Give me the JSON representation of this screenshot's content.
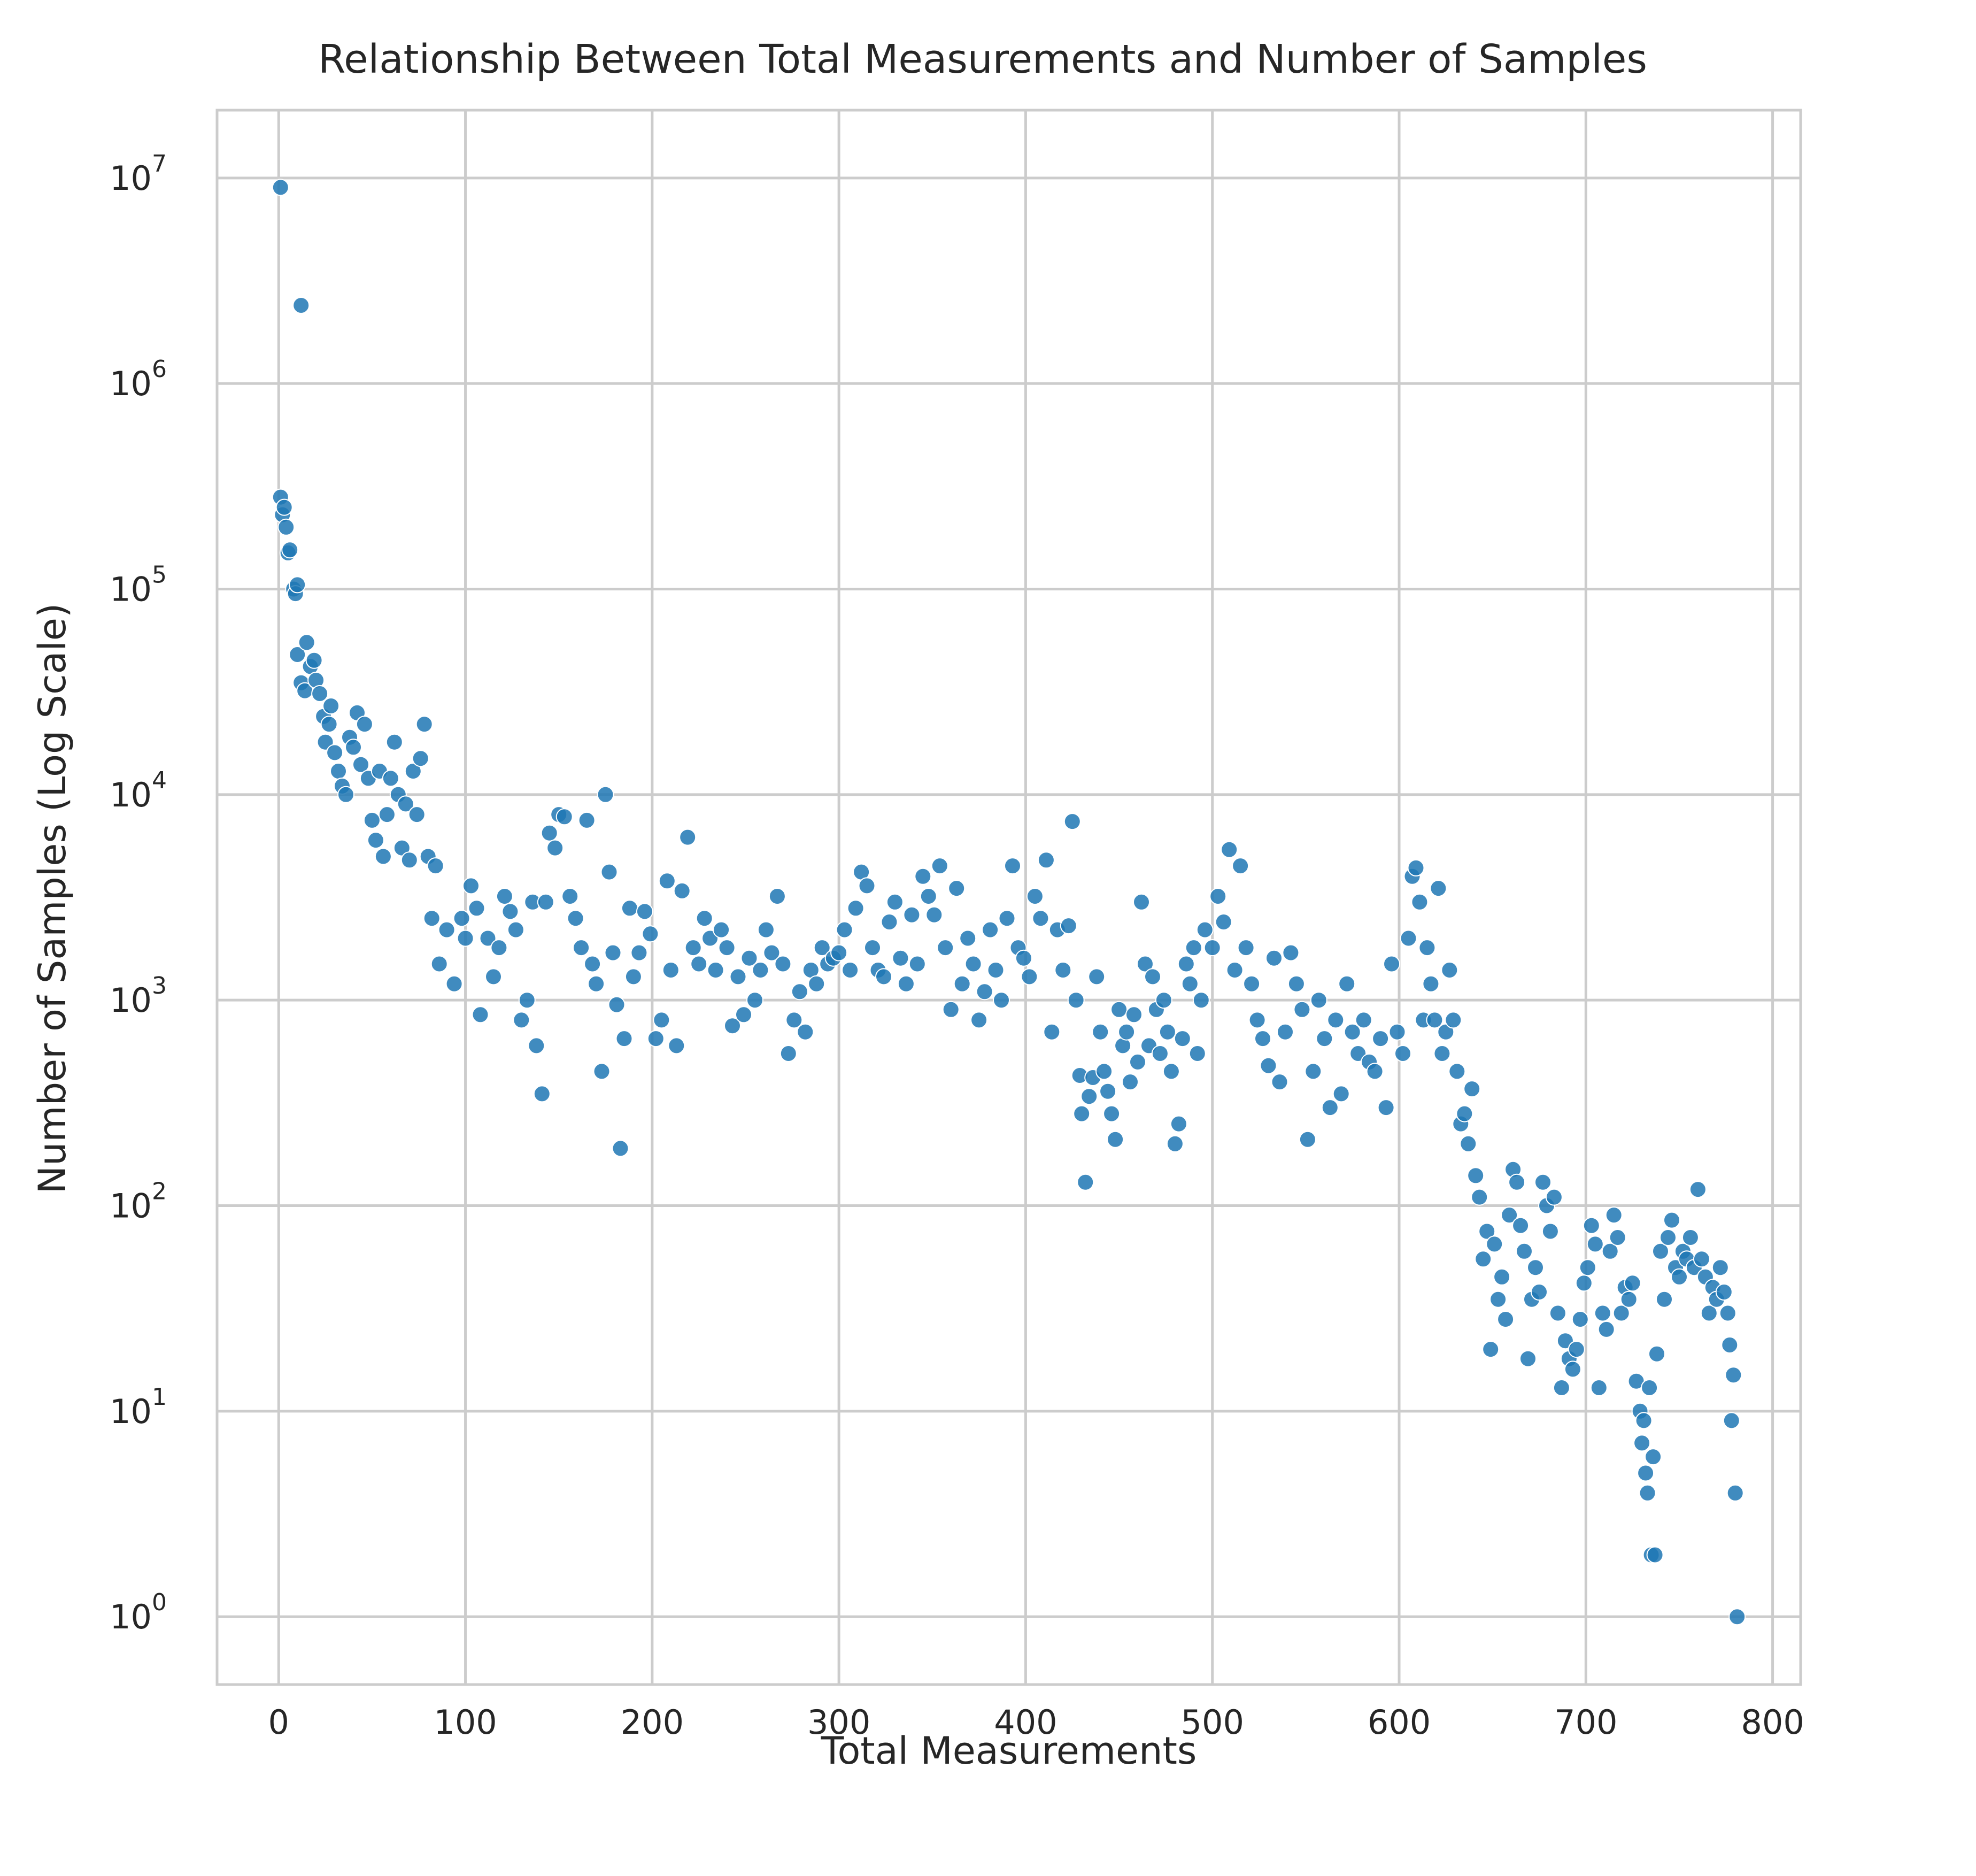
{
  "chart_data": {
    "type": "scatter",
    "title": "Relationship Between Total Measurements and Number of Samples",
    "xlabel": "Total Measurements",
    "ylabel": "Number of Samples (Log Scale)",
    "yscale": "log",
    "xlim": [
      -33,
      815
    ],
    "ylim_log10": [
      -0.33,
      7.33
    ],
    "xticks": [
      0,
      100,
      200,
      300,
      400,
      500,
      600,
      700,
      800
    ],
    "yticks": [
      {
        "base": "10",
        "exp": "0"
      },
      {
        "base": "10",
        "exp": "1"
      },
      {
        "base": "10",
        "exp": "2"
      },
      {
        "base": "10",
        "exp": "3"
      },
      {
        "base": "10",
        "exp": "4"
      },
      {
        "base": "10",
        "exp": "5"
      },
      {
        "base": "10",
        "exp": "6"
      },
      {
        "base": "10",
        "exp": "7"
      }
    ],
    "grid": true,
    "color": "#1f77b4",
    "points": [
      [
        1,
        9000000
      ],
      [
        12,
        2400000
      ],
      [
        1,
        280000
      ],
      [
        2,
        230000
      ],
      [
        3,
        250000
      ],
      [
        4,
        200000
      ],
      [
        5,
        150000
      ],
      [
        6,
        155000
      ],
      [
        8,
        100000
      ],
      [
        9,
        95000
      ],
      [
        10,
        105000
      ],
      [
        10,
        48000
      ],
      [
        12,
        35000
      ],
      [
        14,
        32000
      ],
      [
        15,
        55000
      ],
      [
        17,
        42000
      ],
      [
        19,
        45000
      ],
      [
        20,
        36000
      ],
      [
        22,
        31000
      ],
      [
        24,
        24000
      ],
      [
        25,
        18000
      ],
      [
        27,
        22000
      ],
      [
        28,
        27000
      ],
      [
        30,
        16000
      ],
      [
        32,
        13000
      ],
      [
        34,
        11000
      ],
      [
        36,
        10000
      ],
      [
        38,
        19000
      ],
      [
        40,
        17000
      ],
      [
        42,
        25000
      ],
      [
        44,
        14000
      ],
      [
        46,
        22000
      ],
      [
        48,
        12000
      ],
      [
        50,
        7500
      ],
      [
        52,
        6000
      ],
      [
        54,
        13000
      ],
      [
        56,
        5000
      ],
      [
        58,
        8000
      ],
      [
        60,
        12000
      ],
      [
        62,
        18000
      ],
      [
        64,
        10000
      ],
      [
        66,
        5500
      ],
      [
        68,
        9000
      ],
      [
        70,
        4800
      ],
      [
        72,
        13000
      ],
      [
        74,
        8000
      ],
      [
        76,
        15000
      ],
      [
        78,
        22000
      ],
      [
        80,
        5000
      ],
      [
        82,
        2500
      ],
      [
        84,
        4500
      ],
      [
        86,
        1500
      ],
      [
        90,
        2200
      ],
      [
        94,
        1200
      ],
      [
        98,
        2500
      ],
      [
        100,
        2000
      ],
      [
        103,
        3600
      ],
      [
        106,
        2800
      ],
      [
        108,
        850
      ],
      [
        112,
        2000
      ],
      [
        115,
        1300
      ],
      [
        118,
        1800
      ],
      [
        121,
        3200
      ],
      [
        124,
        2700
      ],
      [
        127,
        2200
      ],
      [
        130,
        800
      ],
      [
        133,
        1000
      ],
      [
        136,
        3000
      ],
      [
        138,
        600
      ],
      [
        141,
        350
      ],
      [
        143,
        3000
      ],
      [
        145,
        6500
      ],
      [
        148,
        5500
      ],
      [
        150,
        8000
      ],
      [
        153,
        7800
      ],
      [
        156,
        3200
      ],
      [
        159,
        2500
      ],
      [
        162,
        1800
      ],
      [
        165,
        7500
      ],
      [
        168,
        1500
      ],
      [
        170,
        1200
      ],
      [
        173,
        450
      ],
      [
        175,
        10000
      ],
      [
        177,
        4200
      ],
      [
        179,
        1700
      ],
      [
        181,
        950
      ],
      [
        183,
        190
      ],
      [
        185,
        650
      ],
      [
        188,
        2800
      ],
      [
        190,
        1300
      ],
      [
        193,
        1700
      ],
      [
        196,
        2700
      ],
      [
        199,
        2100
      ],
      [
        202,
        650
      ],
      [
        205,
        800
      ],
      [
        208,
        3800
      ],
      [
        210,
        1400
      ],
      [
        213,
        600
      ],
      [
        216,
        3400
      ],
      [
        219,
        6200
      ],
      [
        222,
        1800
      ],
      [
        225,
        1500
      ],
      [
        228,
        2500
      ],
      [
        231,
        2000
      ],
      [
        234,
        1400
      ],
      [
        237,
        2200
      ],
      [
        240,
        1800
      ],
      [
        243,
        750
      ],
      [
        246,
        1300
      ],
      [
        249,
        850
      ],
      [
        252,
        1600
      ],
      [
        255,
        1000
      ],
      [
        258,
        1400
      ],
      [
        261,
        2200
      ],
      [
        264,
        1700
      ],
      [
        267,
        3200
      ],
      [
        270,
        1500
      ],
      [
        273,
        550
      ],
      [
        276,
        800
      ],
      [
        279,
        1100
      ],
      [
        282,
        700
      ],
      [
        285,
        1400
      ],
      [
        288,
        1200
      ],
      [
        291,
        1800
      ],
      [
        294,
        1500
      ],
      [
        297,
        1600
      ],
      [
        300,
        1700
      ],
      [
        303,
        2200
      ],
      [
        306,
        1400
      ],
      [
        309,
        2800
      ],
      [
        312,
        4200
      ],
      [
        315,
        3600
      ],
      [
        318,
        1800
      ],
      [
        321,
        1400
      ],
      [
        324,
        1300
      ],
      [
        327,
        2400
      ],
      [
        330,
        3000
      ],
      [
        333,
        1600
      ],
      [
        336,
        1200
      ],
      [
        339,
        2600
      ],
      [
        342,
        1500
      ],
      [
        345,
        4000
      ],
      [
        348,
        3200
      ],
      [
        351,
        2600
      ],
      [
        354,
        4500
      ],
      [
        357,
        1800
      ],
      [
        360,
        900
      ],
      [
        363,
        3500
      ],
      [
        366,
        1200
      ],
      [
        369,
        2000
      ],
      [
        372,
        1500
      ],
      [
        375,
        800
      ],
      [
        378,
        1100
      ],
      [
        381,
        2200
      ],
      [
        384,
        1400
      ],
      [
        387,
        1000
      ],
      [
        390,
        2500
      ],
      [
        393,
        4500
      ],
      [
        396,
        1800
      ],
      [
        399,
        1600
      ],
      [
        402,
        1300
      ],
      [
        405,
        3200
      ],
      [
        408,
        2500
      ],
      [
        411,
        4800
      ],
      [
        414,
        700
      ],
      [
        417,
        2200
      ],
      [
        420,
        1400
      ],
      [
        423,
        2300
      ],
      [
        425,
        7400
      ],
      [
        427,
        1000
      ],
      [
        429,
        430
      ],
      [
        430,
        280
      ],
      [
        432,
        130
      ],
      [
        434,
        340
      ],
      [
        436,
        420
      ],
      [
        438,
        1300
      ],
      [
        440,
        700
      ],
      [
        442,
        450
      ],
      [
        444,
        360
      ],
      [
        446,
        280
      ],
      [
        448,
        210
      ],
      [
        450,
        900
      ],
      [
        452,
        600
      ],
      [
        454,
        700
      ],
      [
        456,
        400
      ],
      [
        458,
        850
      ],
      [
        460,
        500
      ],
      [
        462,
        3000
      ],
      [
        464,
        1500
      ],
      [
        466,
        600
      ],
      [
        468,
        1300
      ],
      [
        470,
        900
      ],
      [
        472,
        550
      ],
      [
        474,
        1000
      ],
      [
        476,
        700
      ],
      [
        478,
        450
      ],
      [
        480,
        200
      ],
      [
        482,
        250
      ],
      [
        484,
        650
      ],
      [
        486,
        1500
      ],
      [
        488,
        1200
      ],
      [
        490,
        1800
      ],
      [
        492,
        550
      ],
      [
        494,
        1000
      ],
      [
        496,
        2200
      ],
      [
        500,
        1800
      ],
      [
        503,
        3200
      ],
      [
        506,
        2400
      ],
      [
        509,
        5400
      ],
      [
        512,
        1400
      ],
      [
        515,
        4500
      ],
      [
        518,
        1800
      ],
      [
        521,
        1200
      ],
      [
        524,
        800
      ],
      [
        527,
        650
      ],
      [
        530,
        480
      ],
      [
        533,
        1600
      ],
      [
        536,
        400
      ],
      [
        539,
        700
      ],
      [
        542,
        1700
      ],
      [
        545,
        1200
      ],
      [
        548,
        900
      ],
      [
        551,
        210
      ],
      [
        554,
        450
      ],
      [
        557,
        1000
      ],
      [
        560,
        650
      ],
      [
        563,
        300
      ],
      [
        566,
        800
      ],
      [
        569,
        350
      ],
      [
        572,
        1200
      ],
      [
        575,
        700
      ],
      [
        578,
        550
      ],
      [
        581,
        800
      ],
      [
        584,
        500
      ],
      [
        587,
        450
      ],
      [
        590,
        650
      ],
      [
        593,
        300
      ],
      [
        596,
        1500
      ],
      [
        599,
        700
      ],
      [
        602,
        550
      ],
      [
        605,
        2000
      ],
      [
        607,
        4000
      ],
      [
        609,
        4400
      ],
      [
        611,
        3000
      ],
      [
        613,
        800
      ],
      [
        615,
        1800
      ],
      [
        617,
        1200
      ],
      [
        619,
        800
      ],
      [
        621,
        3500
      ],
      [
        623,
        550
      ],
      [
        625,
        700
      ],
      [
        627,
        1400
      ],
      [
        629,
        800
      ],
      [
        631,
        450
      ],
      [
        633,
        250
      ],
      [
        635,
        280
      ],
      [
        637,
        200
      ],
      [
        639,
        370
      ],
      [
        641,
        140
      ],
      [
        643,
        110
      ],
      [
        645,
        55
      ],
      [
        647,
        75
      ],
      [
        649,
        20
      ],
      [
        651,
        65
      ],
      [
        653,
        35
      ],
      [
        655,
        45
      ],
      [
        657,
        28
      ],
      [
        659,
        90
      ],
      [
        661,
        150
      ],
      [
        663,
        130
      ],
      [
        665,
        80
      ],
      [
        667,
        60
      ],
      [
        669,
        18
      ],
      [
        671,
        35
      ],
      [
        673,
        50
      ],
      [
        675,
        38
      ],
      [
        677,
        130
      ],
      [
        679,
        100
      ],
      [
        681,
        75
      ],
      [
        683,
        110
      ],
      [
        685,
        30
      ],
      [
        687,
        13
      ],
      [
        689,
        22
      ],
      [
        691,
        18
      ],
      [
        693,
        16
      ],
      [
        695,
        20
      ],
      [
        697,
        28
      ],
      [
        699,
        42
      ],
      [
        701,
        50
      ],
      [
        703,
        80
      ],
      [
        705,
        65
      ],
      [
        707,
        13
      ],
      [
        709,
        30
      ],
      [
        711,
        25
      ],
      [
        713,
        60
      ],
      [
        715,
        90
      ],
      [
        717,
        70
      ],
      [
        719,
        30
      ],
      [
        721,
        40
      ],
      [
        723,
        35
      ],
      [
        725,
        42
      ],
      [
        727,
        14
      ],
      [
        729,
        10
      ],
      [
        730,
        7
      ],
      [
        731,
        9
      ],
      [
        732,
        5
      ],
      [
        733,
        4
      ],
      [
        734,
        13
      ],
      [
        735,
        2
      ],
      [
        736,
        6
      ],
      [
        737,
        2
      ],
      [
        738,
        19
      ],
      [
        740,
        60
      ],
      [
        742,
        35
      ],
      [
        744,
        70
      ],
      [
        746,
        85
      ],
      [
        748,
        50
      ],
      [
        750,
        45
      ],
      [
        752,
        60
      ],
      [
        754,
        55
      ],
      [
        756,
        70
      ],
      [
        758,
        50
      ],
      [
        760,
        120
      ],
      [
        762,
        55
      ],
      [
        764,
        45
      ],
      [
        766,
        30
      ],
      [
        768,
        40
      ],
      [
        770,
        35
      ],
      [
        772,
        50
      ],
      [
        774,
        38
      ],
      [
        776,
        30
      ],
      [
        777,
        21
      ],
      [
        778,
        9
      ],
      [
        779,
        15
      ],
      [
        780,
        4
      ],
      [
        781,
        1
      ]
    ]
  }
}
